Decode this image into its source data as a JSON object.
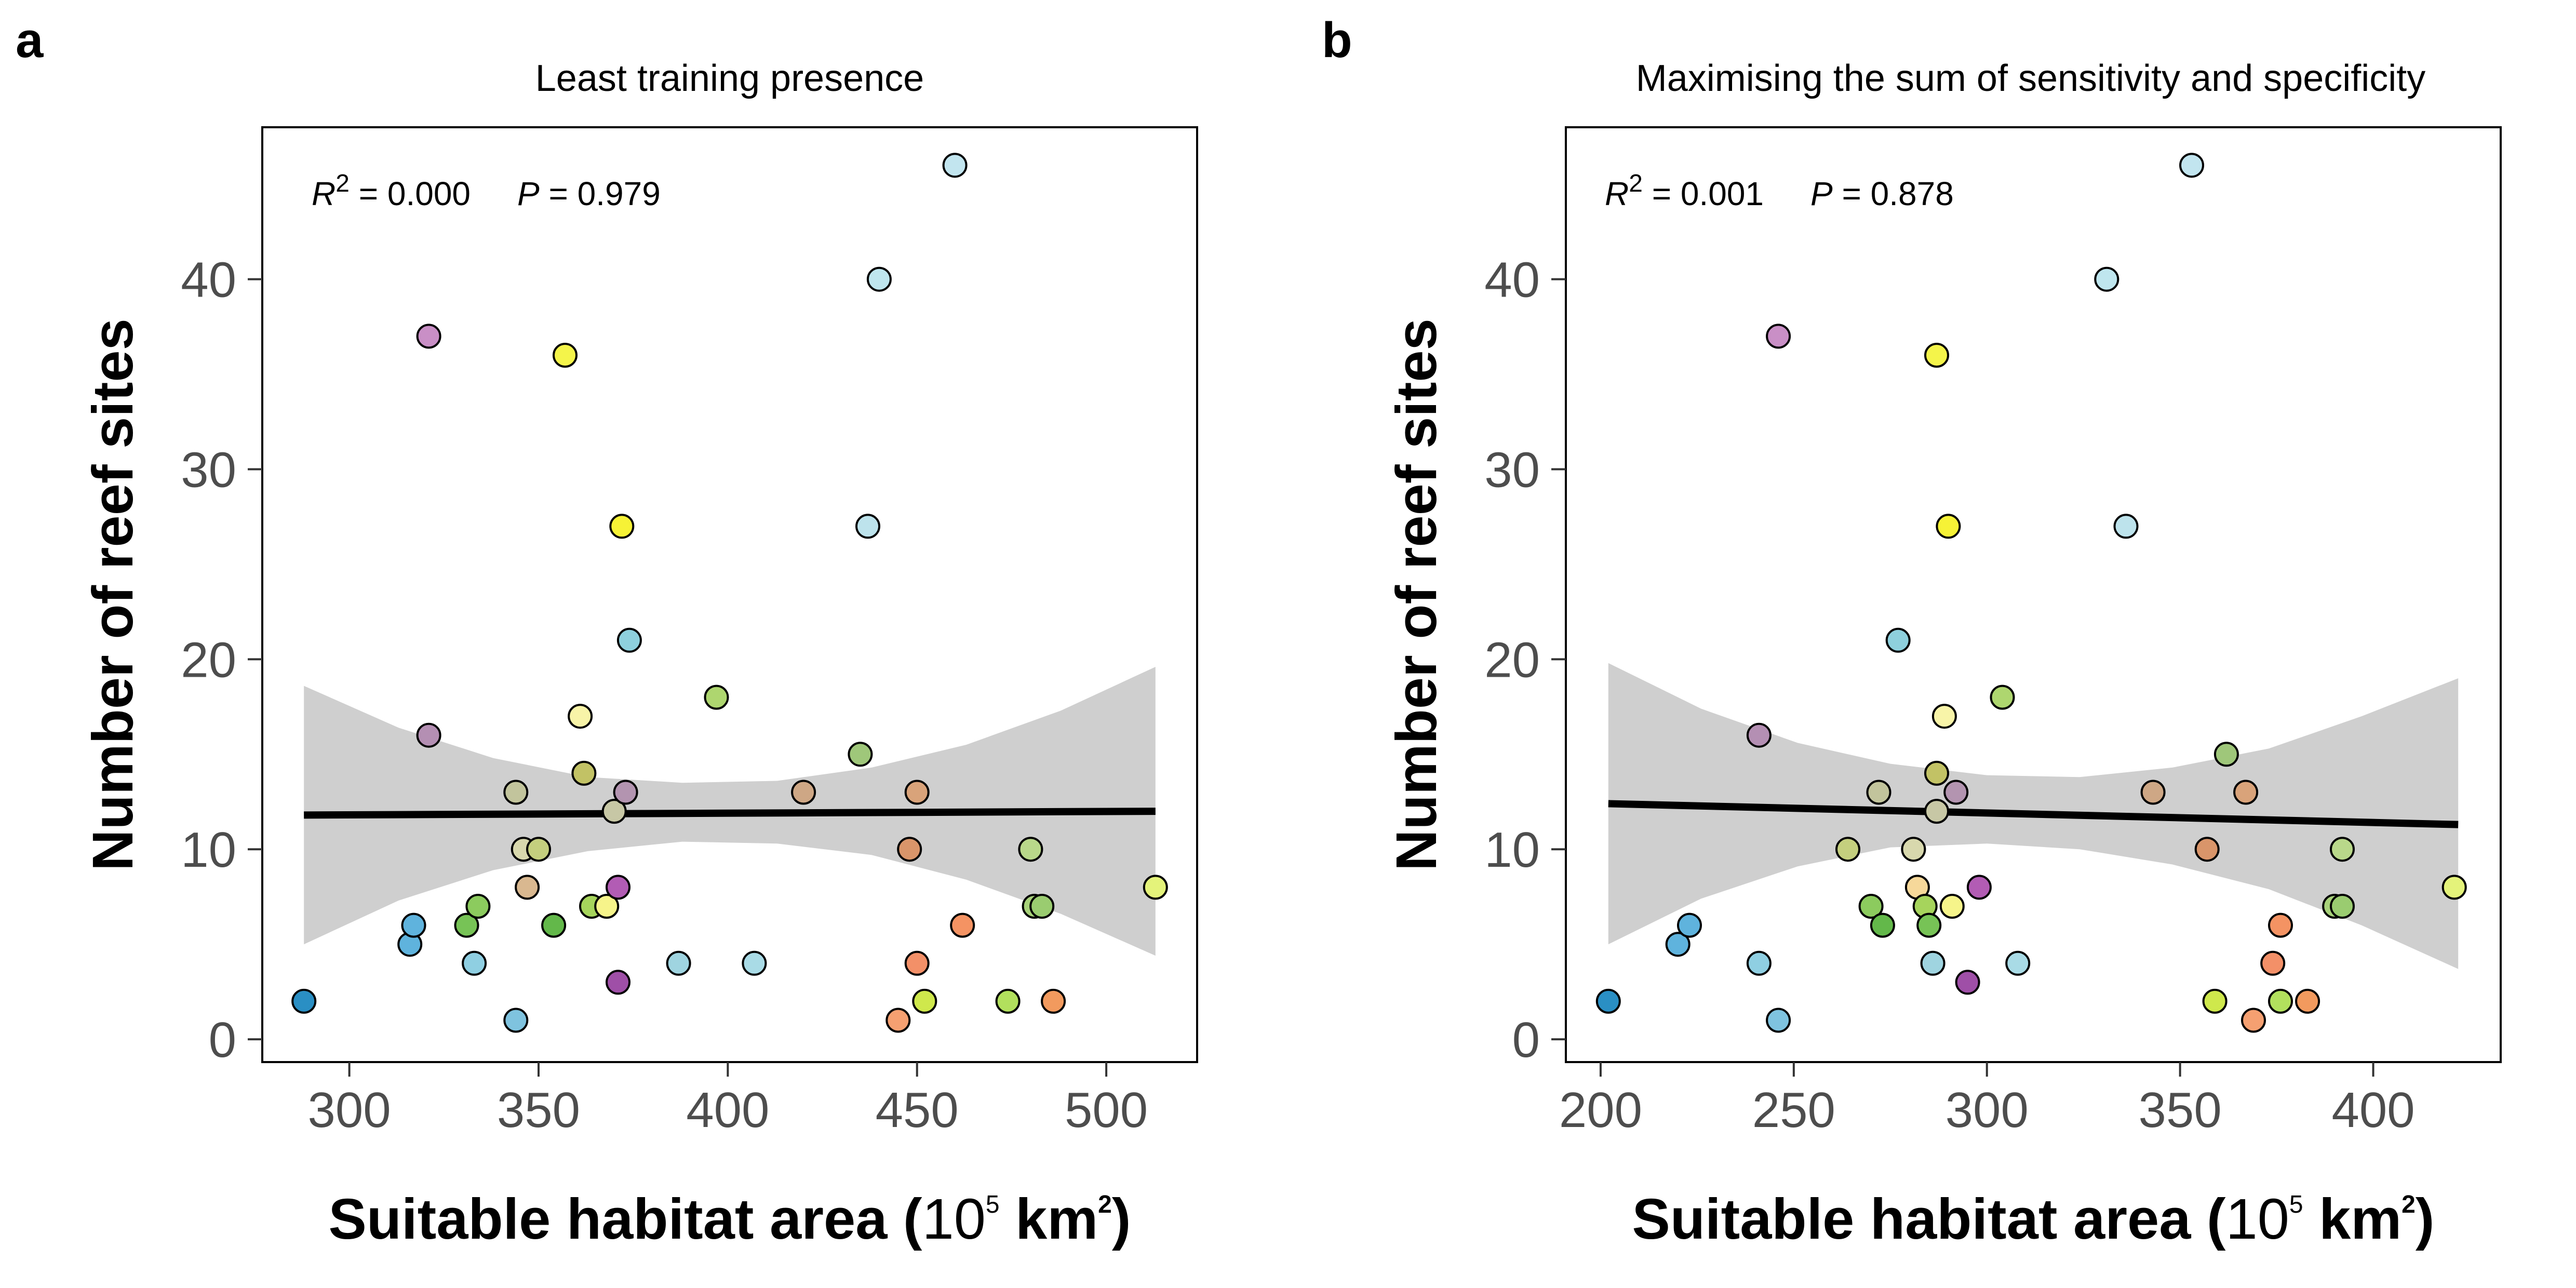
{
  "chart_data": [
    {
      "panel_label": "a",
      "type": "scatter",
      "title": "Least training presence",
      "xlabel_main": "Suitable habitat area (",
      "xlabel_base": "10",
      "xlabel_exp": "5",
      "xlabel_unit": " km",
      "xlabel_unit_exp": "2",
      "xlabel_close": ")",
      "ylabel": "Number of reef sites",
      "stat_r2_label": "R",
      "stat_r2_exp": "2",
      "stat_r2_value": " = 0.000",
      "stat_p_label": "P",
      "stat_p_value": " = 0.979",
      "xlim": [
        277,
        524
      ],
      "ylim": [
        -1.2,
        48
      ],
      "xticks": [
        300,
        350,
        400,
        450,
        500
      ],
      "yticks": [
        0,
        10,
        20,
        30,
        40
      ],
      "grid": false,
      "fit_line": {
        "x": [
          288,
          513
        ],
        "y": [
          11.8,
          12.0
        ]
      },
      "confidence_band": {
        "x": [
          288,
          313,
          338,
          363,
          388,
          413,
          438,
          463,
          488,
          513
        ],
        "upper": [
          18.6,
          16.4,
          14.8,
          13.8,
          13.5,
          13.6,
          14.3,
          15.5,
          17.3,
          19.6
        ],
        "lower": [
          5.0,
          7.3,
          8.9,
          9.9,
          10.4,
          10.3,
          9.7,
          8.4,
          6.6,
          4.4
        ]
      },
      "points": [
        {
          "x": 288,
          "y": 2,
          "color": "#2a8fc4"
        },
        {
          "x": 316,
          "y": 5,
          "color": "#5fb3dd"
        },
        {
          "x": 317,
          "y": 6,
          "color": "#5fb3dd"
        },
        {
          "x": 321,
          "y": 37,
          "color": "#c98fc6"
        },
        {
          "x": 321,
          "y": 16,
          "color": "#b48fb3"
        },
        {
          "x": 331,
          "y": 6,
          "color": "#77c356"
        },
        {
          "x": 333,
          "y": 4,
          "color": "#8fcfe2"
        },
        {
          "x": 334,
          "y": 7,
          "color": "#8ccb5e"
        },
        {
          "x": 344,
          "y": 1,
          "color": "#7fc3df"
        },
        {
          "x": 344,
          "y": 13,
          "color": "#c2c49c"
        },
        {
          "x": 346,
          "y": 10,
          "color": "#d8d8ad"
        },
        {
          "x": 347,
          "y": 8,
          "color": "#d9b890"
        },
        {
          "x": 350,
          "y": 10,
          "color": "#c4cf7e"
        },
        {
          "x": 354,
          "y": 6,
          "color": "#63b84a"
        },
        {
          "x": 357,
          "y": 36,
          "color": "#f4f44a"
        },
        {
          "x": 361,
          "y": 17,
          "color": "#f8f4a8"
        },
        {
          "x": 362,
          "y": 14,
          "color": "#c2c265"
        },
        {
          "x": 364,
          "y": 7,
          "color": "#a6d45c"
        },
        {
          "x": 368,
          "y": 7,
          "color": "#f6f48a"
        },
        {
          "x": 370,
          "y": 12,
          "color": "#c7c7a5"
        },
        {
          "x": 371,
          "y": 8,
          "color": "#b25cb4"
        },
        {
          "x": 371,
          "y": 3,
          "color": "#9f4fa7"
        },
        {
          "x": 372,
          "y": 27,
          "color": "#f6f236"
        },
        {
          "x": 373,
          "y": 13,
          "color": "#b394b0"
        },
        {
          "x": 374,
          "y": 21,
          "color": "#8ed0dd"
        },
        {
          "x": 387,
          "y": 4,
          "color": "#9fd4e0"
        },
        {
          "x": 397,
          "y": 18,
          "color": "#aed66f"
        },
        {
          "x": 407,
          "y": 4,
          "color": "#a9dbe6"
        },
        {
          "x": 420,
          "y": 13,
          "color": "#cea785"
        },
        {
          "x": 435,
          "y": 15,
          "color": "#9fc77a"
        },
        {
          "x": 437,
          "y": 27,
          "color": "#bde3ec"
        },
        {
          "x": 440,
          "y": 40,
          "color": "#bfe6ee"
        },
        {
          "x": 445,
          "y": 1,
          "color": "#f5a071"
        },
        {
          "x": 448,
          "y": 10,
          "color": "#d9956a"
        },
        {
          "x": 450,
          "y": 4,
          "color": "#f39068"
        },
        {
          "x": 450,
          "y": 13,
          "color": "#d9a37a"
        },
        {
          "x": 452,
          "y": 2,
          "color": "#cfe84c"
        },
        {
          "x": 460,
          "y": 46,
          "color": "#c2e5ef"
        },
        {
          "x": 462,
          "y": 6,
          "color": "#f49363"
        },
        {
          "x": 474,
          "y": 2,
          "color": "#b2e05d"
        },
        {
          "x": 480,
          "y": 10,
          "color": "#b9d88a"
        },
        {
          "x": 481,
          "y": 7,
          "color": "#a8d27a"
        },
        {
          "x": 483,
          "y": 7,
          "color": "#9acc70"
        },
        {
          "x": 486,
          "y": 2,
          "color": "#f29a5e"
        },
        {
          "x": 513,
          "y": 8,
          "color": "#e4f37a"
        }
      ]
    },
    {
      "panel_label": "b",
      "type": "scatter",
      "title": "Maximising the sum of sensitivity and specificity",
      "xlabel_main": "Suitable habitat area (",
      "xlabel_base": "10",
      "xlabel_exp": "5",
      "xlabel_unit": " km",
      "xlabel_unit_exp": "2",
      "xlabel_close": ")",
      "ylabel": "Number of reef sites",
      "stat_r2_label": "R",
      "stat_r2_exp": "2",
      "stat_r2_value": " = 0.001",
      "stat_p_label": "P",
      "stat_p_value": " = 0.878",
      "xlim": [
        191,
        433
      ],
      "ylim": [
        -1.2,
        48
      ],
      "xticks": [
        200,
        250,
        300,
        350,
        400
      ],
      "yticks": [
        0,
        10,
        20,
        30,
        40
      ],
      "grid": false,
      "fit_line": {
        "x": [
          202,
          422
        ],
        "y": [
          12.4,
          11.3
        ]
      },
      "confidence_band": {
        "x": [
          202,
          226,
          251,
          275,
          300,
          324,
          348,
          373,
          397,
          422
        ],
        "upper": [
          19.8,
          17.4,
          15.6,
          14.5,
          13.9,
          13.8,
          14.3,
          15.3,
          17.0,
          19.0
        ],
        "lower": [
          5.0,
          7.4,
          9.1,
          10.1,
          10.3,
          10.0,
          9.2,
          7.9,
          6.0,
          3.7
        ]
      },
      "points": [
        {
          "x": 202,
          "y": 2,
          "color": "#2a8fc4"
        },
        {
          "x": 220,
          "y": 5,
          "color": "#5fb3dd"
        },
        {
          "x": 223,
          "y": 6,
          "color": "#5fb3dd"
        },
        {
          "x": 241,
          "y": 4,
          "color": "#8fcfe2"
        },
        {
          "x": 241,
          "y": 16,
          "color": "#b48fb3"
        },
        {
          "x": 246,
          "y": 37,
          "color": "#c98fc6"
        },
        {
          "x": 246,
          "y": 1,
          "color": "#7fc3df"
        },
        {
          "x": 264,
          "y": 10,
          "color": "#c4cf7e"
        },
        {
          "x": 270,
          "y": 7,
          "color": "#8ccb5e"
        },
        {
          "x": 272,
          "y": 13,
          "color": "#c2c49c"
        },
        {
          "x": 273,
          "y": 6,
          "color": "#63b84a"
        },
        {
          "x": 277,
          "y": 21,
          "color": "#8ed0dd"
        },
        {
          "x": 281,
          "y": 10,
          "color": "#d8d8ad"
        },
        {
          "x": 282,
          "y": 8,
          "color": "#f6d89a"
        },
        {
          "x": 284,
          "y": 7,
          "color": "#a6d45c"
        },
        {
          "x": 285,
          "y": 6,
          "color": "#77c356"
        },
        {
          "x": 286,
          "y": 4,
          "color": "#9fd4e0"
        },
        {
          "x": 287,
          "y": 36,
          "color": "#f4f44a"
        },
        {
          "x": 287,
          "y": 14,
          "color": "#c2c265"
        },
        {
          "x": 287,
          "y": 12,
          "color": "#c7c7a5"
        },
        {
          "x": 289,
          "y": 17,
          "color": "#f8f4a8"
        },
        {
          "x": 290,
          "y": 27,
          "color": "#f6f236"
        },
        {
          "x": 291,
          "y": 7,
          "color": "#f6f48a"
        },
        {
          "x": 292,
          "y": 13,
          "color": "#b394b0"
        },
        {
          "x": 295,
          "y": 3,
          "color": "#9f4fa7"
        },
        {
          "x": 298,
          "y": 8,
          "color": "#b25cb4"
        },
        {
          "x": 304,
          "y": 18,
          "color": "#aed66f"
        },
        {
          "x": 308,
          "y": 4,
          "color": "#a9dbe6"
        },
        {
          "x": 331,
          "y": 40,
          "color": "#bfe6ee"
        },
        {
          "x": 336,
          "y": 27,
          "color": "#bde3ec"
        },
        {
          "x": 343,
          "y": 13,
          "color": "#cea785"
        },
        {
          "x": 353,
          "y": 46,
          "color": "#c2e5ef"
        },
        {
          "x": 357,
          "y": 10,
          "color": "#d9956a"
        },
        {
          "x": 359,
          "y": 2,
          "color": "#cfe84c"
        },
        {
          "x": 362,
          "y": 15,
          "color": "#9fc77a"
        },
        {
          "x": 367,
          "y": 13,
          "color": "#d9a37a"
        },
        {
          "x": 369,
          "y": 1,
          "color": "#f5a071"
        },
        {
          "x": 374,
          "y": 4,
          "color": "#f39068"
        },
        {
          "x": 376,
          "y": 6,
          "color": "#f49363"
        },
        {
          "x": 376,
          "y": 2,
          "color": "#b2e05d"
        },
        {
          "x": 383,
          "y": 2,
          "color": "#f29a5e"
        },
        {
          "x": 390,
          "y": 7,
          "color": "#a8d27a"
        },
        {
          "x": 392,
          "y": 7,
          "color": "#9acc70"
        },
        {
          "x": 392,
          "y": 10,
          "color": "#b9d88a"
        },
        {
          "x": 421,
          "y": 8,
          "color": "#e4f37a"
        }
      ]
    }
  ]
}
